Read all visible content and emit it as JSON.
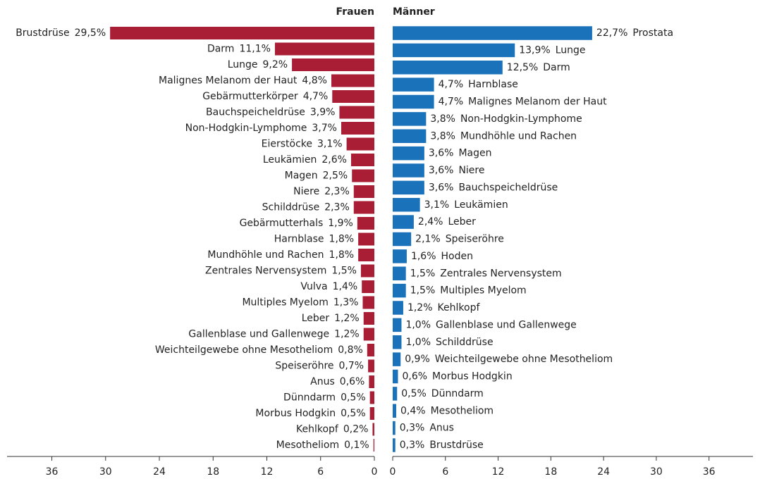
{
  "chart_data": [
    {
      "type": "bar",
      "orientation": "horizontal",
      "title": "Frauen",
      "color": "#a91d35",
      "x_reversed": true,
      "categories": [
        "Brustdrüse",
        "Darm",
        "Lunge",
        "Malignes Melanom der Haut",
        "Gebärmutterkörper",
        "Bauchspeicheldrüse",
        "Non-Hodgkin-Lymphome",
        "Eierstöcke",
        "Leukämien",
        "Magen",
        "Niere",
        "Schilddrüse",
        "Gebärmutterhals",
        "Harnblase",
        "Mundhöhle und Rachen",
        "Zentrales Nervensystem",
        "Vulva",
        "Multiples Myelom",
        "Leber",
        "Gallenblase und Gallenwege",
        "Weichteilgewebe ohne Mesotheliom",
        "Speiseröhre",
        "Anus",
        "Dünndarm",
        "Morbus Hodgkin",
        "Kehlkopf",
        "Mesotheliom"
      ],
      "values": [
        29.5,
        11.1,
        9.2,
        4.8,
        4.7,
        3.9,
        3.7,
        3.1,
        2.6,
        2.5,
        2.3,
        2.3,
        1.9,
        1.8,
        1.8,
        1.5,
        1.4,
        1.3,
        1.2,
        1.2,
        0.8,
        0.7,
        0.6,
        0.5,
        0.5,
        0.2,
        0.1
      ],
      "value_labels": [
        "29,5%",
        "11,1%",
        "9,2%",
        "4,8%",
        "4,7%",
        "3,9%",
        "3,7%",
        "3,1%",
        "2,6%",
        "2,5%",
        "2,3%",
        "2,3%",
        "1,9%",
        "1,8%",
        "1,8%",
        "1,5%",
        "1,4%",
        "1,3%",
        "1,2%",
        "1,2%",
        "0,8%",
        "0,7%",
        "0,6%",
        "0,5%",
        "0,5%",
        "0,2%",
        "0,1%"
      ],
      "xlim": [
        0,
        41
      ],
      "xticks": [
        0,
        6,
        12,
        18,
        24,
        30,
        36
      ]
    },
    {
      "type": "bar",
      "orientation": "horizontal",
      "title": "Männer",
      "color": "#1a72bb",
      "x_reversed": false,
      "categories": [
        "Prostata",
        "Lunge",
        "Darm",
        "Harnblase",
        "Malignes Melanom der Haut",
        "Non-Hodgkin-Lymphome",
        "Mundhöhle und Rachen",
        "Magen",
        "Niere",
        "Bauchspeicheldrüse",
        "Leukämien",
        "Leber",
        "Speiseröhre",
        "Hoden",
        "Zentrales Nervensystem",
        "Multiples Myelom",
        "Kehlkopf",
        "Gallenblase und Gallenwege",
        "Schilddrüse",
        "Weichteilgewebe ohne Mesotheliom",
        "Morbus Hodgkin",
        "Dünndarm",
        "Mesotheliom",
        "Anus",
        "Brustdrüse"
      ],
      "values": [
        22.7,
        13.9,
        12.5,
        4.7,
        4.7,
        3.8,
        3.8,
        3.6,
        3.6,
        3.6,
        3.1,
        2.4,
        2.1,
        1.6,
        1.5,
        1.5,
        1.2,
        1.0,
        1.0,
        0.9,
        0.6,
        0.5,
        0.4,
        0.3,
        0.3
      ],
      "value_labels": [
        "22,7%",
        "13,9%",
        "12,5%",
        "4,7%",
        "4,7%",
        "3,8%",
        "3,8%",
        "3,6%",
        "3,6%",
        "3,6%",
        "3,1%",
        "2,4%",
        "2,1%",
        "1,6%",
        "1,5%",
        "1,5%",
        "1,2%",
        "1,0%",
        "1,0%",
        "0,9%",
        "0,6%",
        "0,5%",
        "0,4%",
        "0,3%",
        "0,3%"
      ],
      "xlim": [
        0,
        41
      ],
      "xticks": [
        0,
        6,
        12,
        18,
        24,
        30,
        36
      ]
    }
  ]
}
